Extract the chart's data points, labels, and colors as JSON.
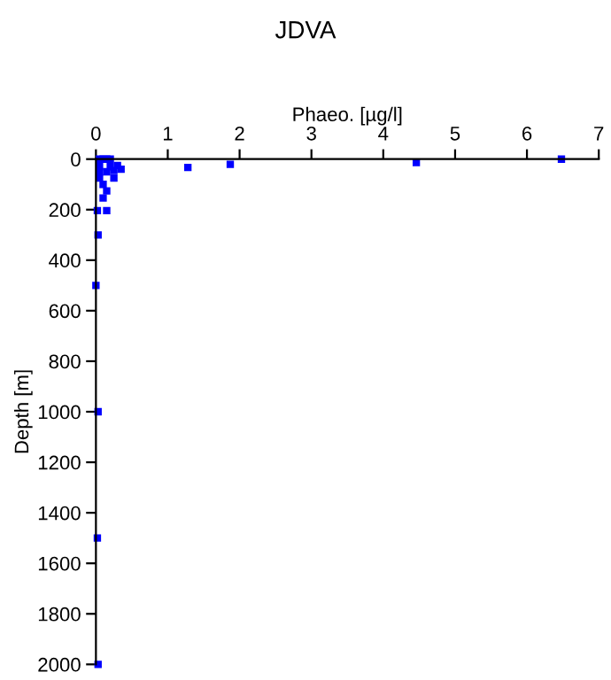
{
  "chart_data": {
    "type": "scatter",
    "title": "JDVA",
    "xlabel": "Phaeo. [µg/l]",
    "ylabel": "Depth [m]",
    "xlim": [
      0,
      7
    ],
    "xticks": [
      0,
      1,
      2,
      3,
      4,
      5,
      6,
      7
    ],
    "ylim": [
      2000,
      0
    ],
    "yticks": [
      0,
      200,
      400,
      600,
      800,
      1000,
      1200,
      1400,
      1600,
      1800,
      2000
    ],
    "grid": false,
    "marker": "square",
    "series": [
      {
        "color": "#0000ff",
        "x": [
          6.48,
          4.46,
          1.87,
          1.28,
          0.05,
          0.1,
          0.15,
          0.2,
          0.3,
          0.05,
          0.2,
          0.35,
          0.25,
          0.05,
          0.15,
          0.25,
          0.05,
          0.1,
          0.15,
          0.1,
          0.02,
          0.15,
          0.03,
          0.0,
          0.03,
          0.02,
          0.03
        ],
        "values": [
          0,
          14,
          21,
          33,
          0,
          0,
          0,
          0,
          25,
          30,
          30,
          40,
          45,
          50,
          50,
          75,
          75,
          100,
          126,
          154,
          204,
          204,
          300,
          500,
          1000,
          1500,
          2000
        ]
      }
    ]
  }
}
